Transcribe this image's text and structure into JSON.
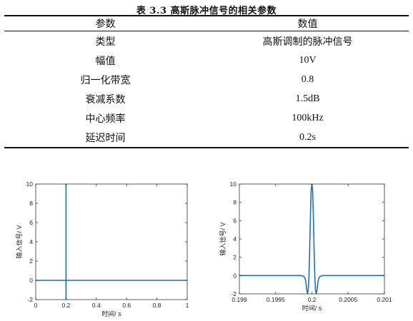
{
  "table": {
    "caption": "表 3.3  高斯脉冲信号的相关参数",
    "header": [
      "参数",
      "数值"
    ],
    "rows": [
      [
        "类型",
        "高斯调制的脉冲信号"
      ],
      [
        "幅值",
        "10V"
      ],
      [
        "归一化带宽",
        "0.8"
      ],
      [
        "衰减系数",
        "1.5dB"
      ],
      [
        "中心频率",
        "100kHz"
      ],
      [
        "延迟时间",
        "0.2s"
      ]
    ]
  },
  "chart_data": [
    {
      "type": "line",
      "xlabel": "时间/ s",
      "ylabel": "输入信号/ V",
      "xlim": [
        0,
        1
      ],
      "ylim": [
        -2,
        10
      ],
      "xticks": [
        0,
        0.2,
        0.4,
        0.6,
        0.8,
        1
      ],
      "xtick_labels": [
        "0",
        "0.2",
        "0.4",
        "0.6",
        "0.8",
        "1"
      ],
      "yticks": [
        -2,
        0,
        2,
        4,
        6,
        8,
        10
      ],
      "ytick_labels": [
        "-2",
        "0",
        "2",
        "4",
        "6",
        "8",
        "10"
      ],
      "grid": false,
      "line_color": "#1f6fb4",
      "series": [
        {
          "x": [
            0,
            0.199,
            0.1998,
            0.19994,
            0.2,
            0.20006,
            0.2002,
            0.201,
            1
          ],
          "y": [
            0,
            0,
            0,
            -2,
            10,
            -2,
            0,
            0,
            0
          ]
        }
      ]
    },
    {
      "type": "line",
      "xlabel": "时间/ s",
      "ylabel": "输入信号/ V",
      "xlim": [
        0.199,
        0.201
      ],
      "ylim": [
        -2,
        10
      ],
      "xticks": [
        0.199,
        0.1995,
        0.2,
        0.2005,
        0.201
      ],
      "xtick_labels": [
        "0.199",
        "0.1995",
        "0.2",
        "0.2005",
        "0.201"
      ],
      "yticks": [
        -2,
        0,
        2,
        4,
        6,
        8,
        10
      ],
      "ytick_labels": [
        "-2",
        "0",
        "2",
        "4",
        "6",
        "8",
        "10"
      ],
      "grid": false,
      "line_color": "#1f6fb4",
      "series": [
        {
          "x": [
            0.199,
            0.19984,
            0.19988,
            0.1999,
            0.19991,
            0.19992,
            0.19993,
            0.19994,
            0.19995,
            0.19996,
            0.19997,
            0.19998,
            0.19999,
            0.2,
            0.20001,
            0.20002,
            0.20003,
            0.20004,
            0.20005,
            0.20006,
            0.20007,
            0.20008,
            0.20009,
            0.2001,
            0.20012,
            0.20016,
            0.201
          ],
          "y": [
            0,
            0,
            -0.05,
            -0.2,
            -0.45,
            -0.9,
            -1.6,
            -2.0,
            -1.6,
            0.0,
            3.0,
            6.6,
            9.3,
            10.0,
            9.3,
            6.6,
            3.0,
            0.0,
            -1.6,
            -2.0,
            -1.6,
            -0.9,
            -0.45,
            -0.2,
            -0.05,
            0,
            0
          ]
        }
      ]
    }
  ]
}
